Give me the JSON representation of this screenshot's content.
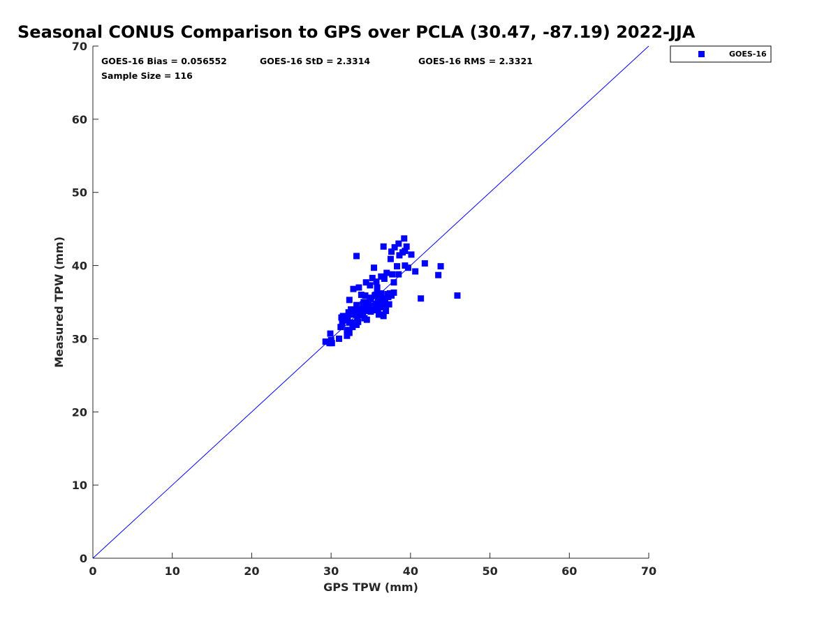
{
  "chart_data": {
    "type": "scatter",
    "title": "Seasonal CONUS Comparison to GPS over PCLA (30.47, -87.19) 2022-JJA",
    "xlabel": "GPS TPW (mm)",
    "ylabel": "Measured TPW (mm)",
    "xlim": [
      0,
      70
    ],
    "ylim": [
      0,
      70
    ],
    "xticks": [
      "0",
      "10",
      "20",
      "30",
      "40",
      "50",
      "60",
      "70"
    ],
    "yticks": [
      "0",
      "10",
      "20",
      "30",
      "40",
      "50",
      "60",
      "70"
    ],
    "grid": false,
    "legend_position": "outside-top-right",
    "one_to_one_line": {
      "from": [
        0,
        0
      ],
      "to": [
        70,
        70
      ],
      "color": "#0000ff"
    },
    "annotations": {
      "bias": "GOES-16 Bias = 0.056552",
      "std": "GOES-16 StD = 2.3314",
      "rms": "GOES-16 RMS = 2.3321",
      "sample": "Sample Size = 116"
    },
    "series": [
      {
        "name": "GOES-16",
        "color": "#0000ff",
        "marker": "square",
        "x": [
          29.3,
          29.8,
          30.1,
          29.9,
          30.0,
          31.0,
          31.2,
          31.4,
          31.5,
          31.8,
          32.0,
          32.0,
          32.1,
          32.2,
          32.3,
          32.3,
          32.5,
          32.6,
          32.7,
          32.8,
          32.9,
          33.0,
          33.1,
          33.2,
          33.2,
          33.3,
          33.4,
          33.5,
          33.6,
          33.7,
          33.8,
          33.9,
          34.0,
          34.0,
          34.1,
          34.2,
          34.3,
          34.3,
          34.4,
          34.5,
          34.5,
          34.6,
          34.7,
          34.8,
          34.9,
          35.0,
          35.0,
          35.1,
          35.2,
          35.3,
          35.3,
          35.4,
          35.5,
          35.5,
          35.6,
          35.7,
          35.8,
          35.9,
          35.9,
          36.0,
          36.0,
          36.1,
          36.2,
          36.3,
          36.3,
          36.4,
          36.5,
          36.5,
          36.6,
          36.7,
          36.7,
          36.8,
          36.9,
          37.0,
          37.1,
          37.2,
          37.3,
          37.4,
          37.5,
          37.6,
          37.7,
          37.9,
          38.0,
          38.3,
          38.5,
          38.6,
          39.0,
          39.2,
          39.3,
          39.5,
          39.7,
          40.1,
          40.6,
          41.3,
          41.8,
          43.5,
          43.8,
          45.9,
          33.2,
          36.6,
          37.9,
          39.3,
          32.3,
          33.1,
          34.1,
          35.6,
          36.1,
          38.5,
          37.6,
          35.8,
          34.9,
          33.6,
          32.7,
          31.3,
          30.0,
          36.9
        ],
        "y": [
          29.6,
          29.4,
          29.4,
          30.7,
          29.8,
          30.0,
          31.6,
          32.1,
          33.1,
          32.5,
          30.4,
          31.2,
          32.9,
          33.6,
          30.8,
          35.3,
          34.0,
          34.0,
          33.3,
          36.8,
          33.9,
          32.2,
          33.5,
          31.9,
          34.6,
          33.0,
          32.3,
          37.0,
          34.0,
          33.2,
          36.0,
          33.5,
          33.6,
          34.7,
          33.8,
          32.8,
          34.2,
          35.9,
          37.7,
          32.6,
          33.8,
          34.5,
          35.0,
          34.4,
          37.3,
          33.7,
          35.4,
          34.4,
          38.3,
          33.9,
          34.5,
          39.7,
          34.2,
          35.9,
          34.8,
          37.8,
          36.2,
          34.1,
          35.1,
          33.3,
          35.9,
          36.0,
          34.4,
          36.2,
          38.5,
          35.1,
          33.3,
          34.3,
          42.6,
          34.8,
          38.2,
          35.5,
          34.4,
          39.0,
          36.1,
          35.7,
          34.7,
          36.2,
          40.9,
          41.9,
          38.8,
          37.7,
          42.5,
          39.9,
          43.0,
          41.4,
          41.8,
          43.7,
          40.0,
          42.6,
          39.7,
          41.5,
          39.2,
          35.5,
          40.3,
          38.7,
          39.9,
          35.9,
          41.3,
          33.1,
          36.3,
          42.0,
          32.2,
          33.6,
          35.0,
          36.0,
          35.4,
          38.8,
          35.9,
          37.0,
          35.6,
          34.0,
          31.6,
          32.9,
          29.6,
          33.8
        ]
      }
    ]
  }
}
